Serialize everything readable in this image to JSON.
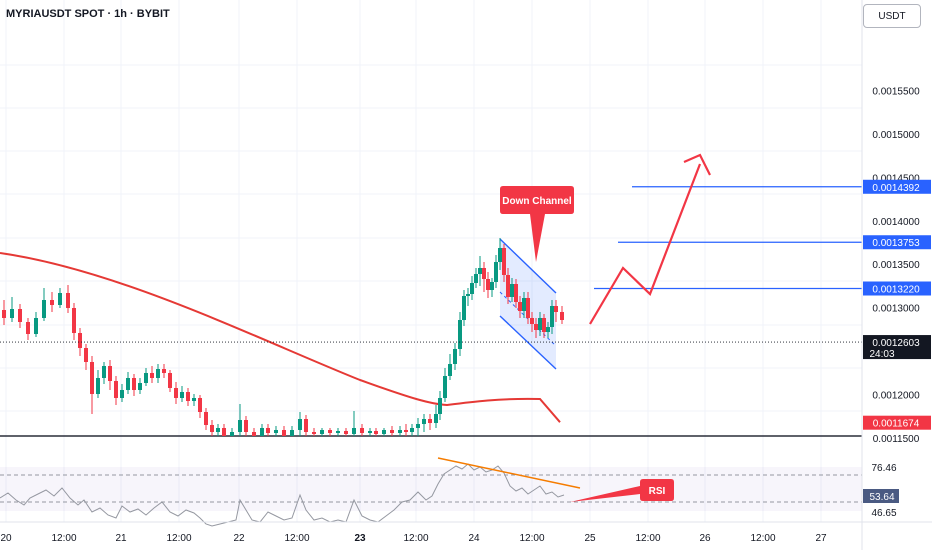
{
  "header": {
    "title": "MYRIAUSDT SPOT · 1h · BYBIT",
    "currency_button": "USDT"
  },
  "chart_data": {
    "type": "candlestick",
    "price_axis": {
      "ticks": [
        "0.0015500",
        "0.0015000",
        "0.0014500",
        "0.0014000",
        "0.0013500",
        "0.0013000",
        "0.0012000",
        "0.0011500"
      ]
    },
    "price_badges": [
      {
        "label": "0.0014392",
        "color": "#2962ff"
      },
      {
        "label": "0.0013753",
        "color": "#2962ff"
      },
      {
        "label": "0.0013220",
        "color": "#2962ff"
      },
      {
        "label": "0.0012603",
        "sublabel": "24:03",
        "color": "#131722"
      },
      {
        "label": "0.0011674",
        "color": "#f23645"
      }
    ],
    "target_levels": [
      0.0014392,
      0.0013753,
      0.001322
    ],
    "last_price": 0.0012603,
    "ma_value": 0.0011674,
    "x_axis_labels": [
      "20",
      "12:00",
      "21",
      "12:00",
      "22",
      "12:00",
      "23",
      "12:00",
      "24",
      "12:00",
      "25",
      "12:00",
      "26",
      "12:00",
      "27"
    ],
    "annotations": {
      "channel_callout": "Down Channel",
      "rsi_callout": "RSI"
    },
    "rsi": {
      "ticks": [
        "76.46",
        "46.65"
      ],
      "value": "53.64"
    },
    "colors": {
      "up": "#089981",
      "down": "#f23645",
      "ma": "#e53935",
      "target": "#2962ff",
      "projection": "#f23645"
    }
  }
}
